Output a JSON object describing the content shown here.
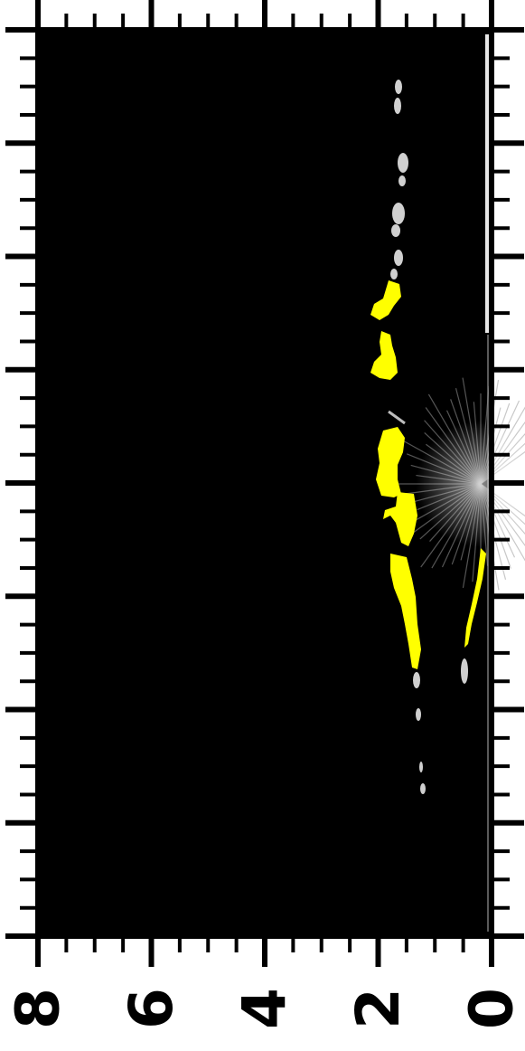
{
  "figure": {
    "type": "sonar-image",
    "background_color": "#000000",
    "frame_color": "#000000",
    "highlight_color": "#ffff00",
    "echo_color": "#cfcfcf"
  },
  "axis": {
    "orientation": "rotated-90",
    "range": [
      0,
      8
    ],
    "major_ticks": [
      0,
      2,
      4,
      6,
      8
    ],
    "minor_ticks_per_major": 4,
    "tick_labels": [
      "8",
      "6",
      "4",
      "2",
      "0"
    ]
  }
}
